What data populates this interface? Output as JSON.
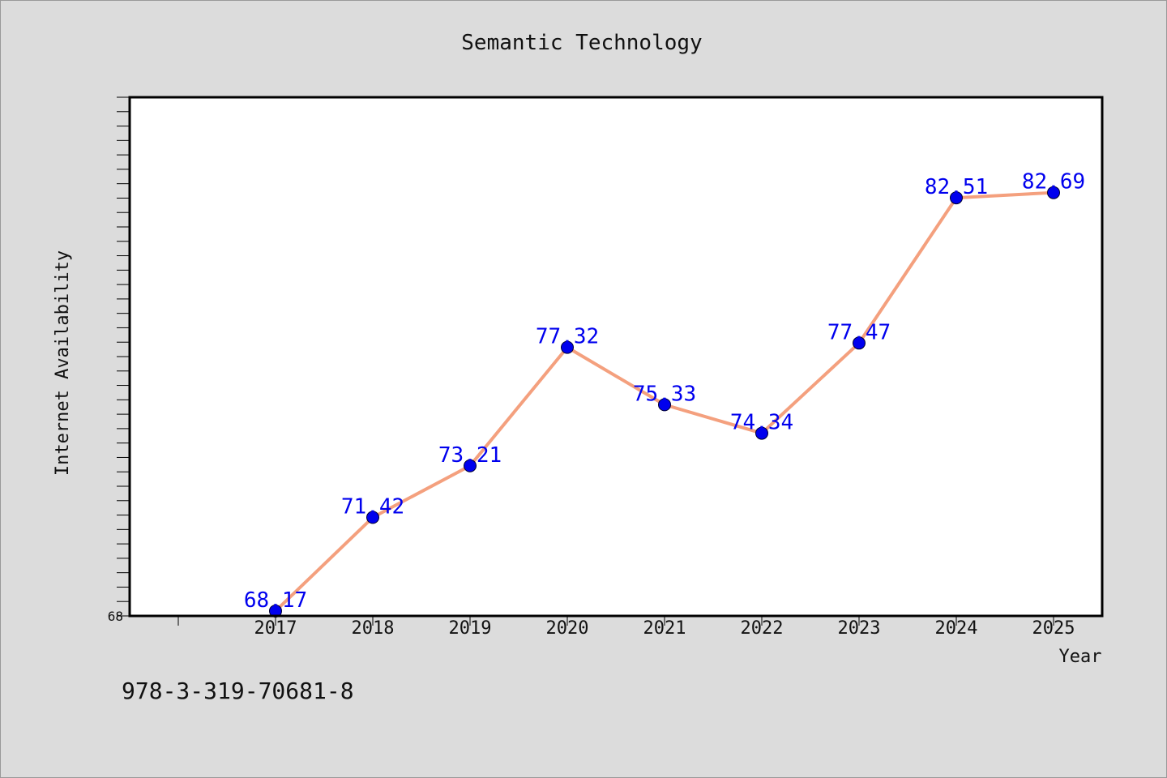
{
  "chart_data": {
    "type": "line",
    "title": "Semantic Technology",
    "xlabel": "Year",
    "ylabel": "Internet Availability",
    "categories": [
      "2017",
      "2018",
      "2019",
      "2020",
      "2021",
      "2022",
      "2023",
      "2024",
      "2025"
    ],
    "series": [
      {
        "values": [
          68.17,
          71.42,
          73.21,
          77.32,
          75.33,
          74.34,
          77.47,
          82.51,
          82.69
        ],
        "labels": [
          "68.17",
          "71.42",
          "73.21",
          "77.32",
          "75.33",
          "74.34",
          "77.47",
          "82.51",
          "82.69"
        ]
      }
    ],
    "ylim": [
      68,
      86
    ],
    "yticklabels": [
      "68"
    ],
    "grid": false,
    "colors": {
      "line": "#f4a07e",
      "marker": "#0000ee",
      "label": "#0000ee",
      "background": "#dcdcdc",
      "plot_background": "#ffffff"
    }
  },
  "footer": {
    "isbn": "978-3-319-70681-8"
  }
}
